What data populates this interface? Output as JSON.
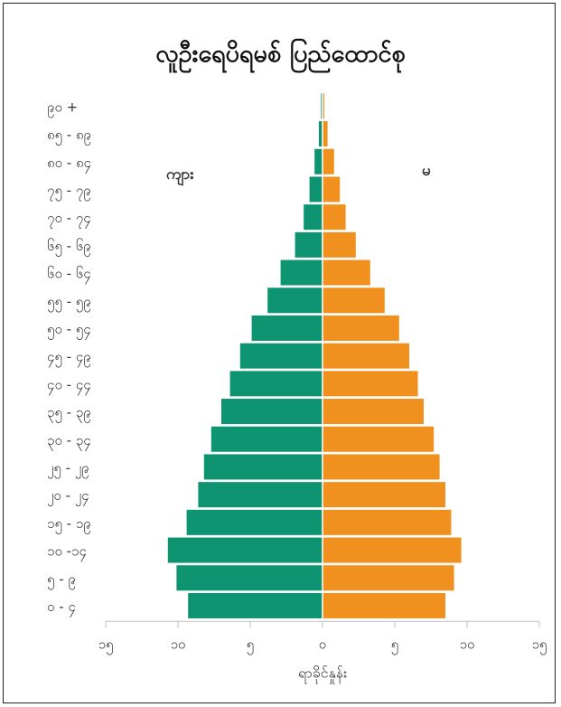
{
  "chart_data": {
    "type": "bar",
    "orientation": "horizontal-population-pyramid",
    "title": "လူဦးရေပိရမစ် ပြည်ထောင်စု",
    "xlabel": "ရာခိုင်နှုန်း",
    "ylabel": "",
    "xlim": [
      -15,
      15
    ],
    "x_ticks": [
      -15,
      -10,
      -5,
      0,
      5,
      10,
      15
    ],
    "x_tick_labels": [
      "၁၅",
      "၁၀",
      "၅",
      "၀",
      "၅",
      "၁၀",
      "၁၅"
    ],
    "grid": false,
    "categories": [
      "၀ - ၄",
      "၅ - ၉",
      "၁၀ -၁၄",
      "၁၅ - ၁၉",
      "၂၀ - ၂၄",
      "၂၅ - ၂၉",
      "၃၀ - ၃၄",
      "၃၅ - ၃၉",
      "၄၀ - ၄၄",
      "၄၅ - ၄၉",
      "၅၀ - ၅၄",
      "၅၅ - ၅၉",
      "၆၀ - ၆၄",
      "၆၅ - ၆၉",
      "၇၀ - ၇၄",
      "၇၅ - ၇၉",
      "၈၀ - ၈၄",
      "၈၅ - ၈၉",
      "၉၀ +"
    ],
    "series": [
      {
        "name": "ကျား",
        "color": "#0f9472",
        "side": "left",
        "values": [
          9.3,
          10.1,
          10.7,
          9.4,
          8.6,
          8.2,
          7.7,
          7.0,
          6.4,
          5.7,
          4.9,
          3.8,
          2.9,
          1.9,
          1.3,
          0.9,
          0.55,
          0.25,
          0.1
        ]
      },
      {
        "name": "မ",
        "color": "#f0901f",
        "side": "right",
        "values": [
          8.5,
          9.1,
          9.6,
          8.9,
          8.5,
          8.1,
          7.7,
          7.0,
          6.6,
          6.0,
          5.3,
          4.3,
          3.3,
          2.3,
          1.6,
          1.2,
          0.8,
          0.35,
          0.12
        ]
      }
    ],
    "series_labels": {
      "male": "ကျား",
      "female": "မ"
    }
  }
}
